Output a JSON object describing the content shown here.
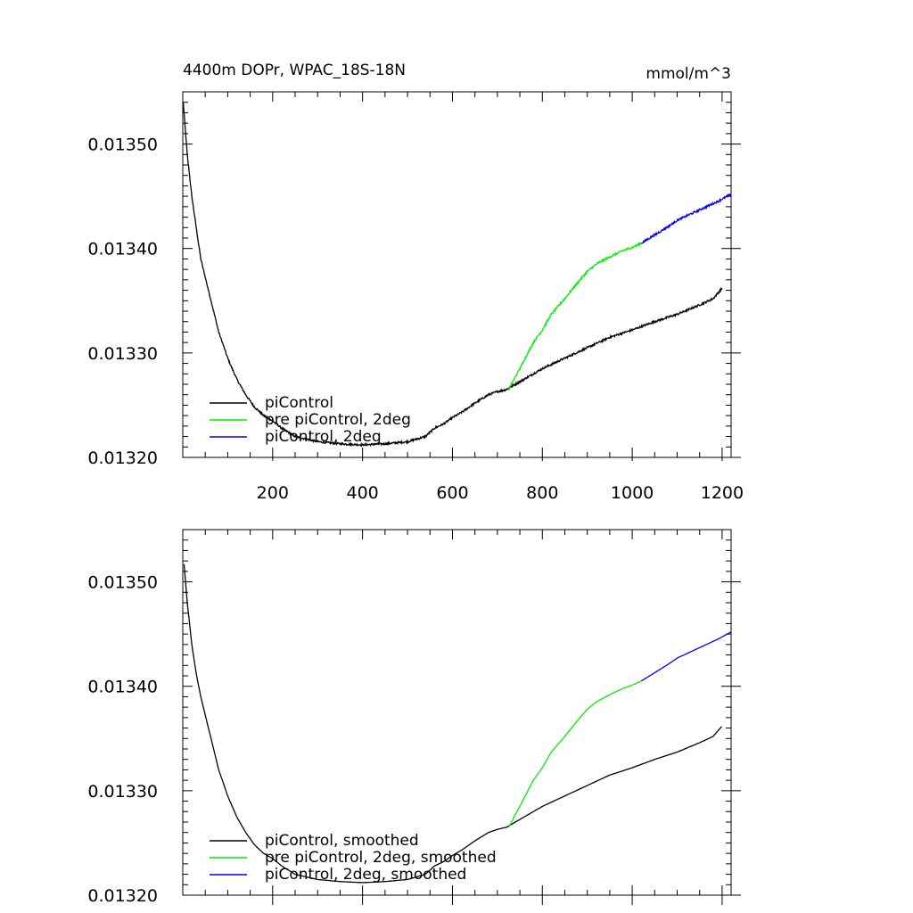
{
  "chart_data": [
    {
      "type": "line",
      "title": "4400m DOPr, WPAC_18S-18N",
      "units": "mmol/m^3",
      "xlabel": "",
      "ylabel": "",
      "xlim": [
        0,
        1220
      ],
      "ylim": [
        0.0132,
        0.01355
      ],
      "x_ticks": [
        200,
        400,
        600,
        800,
        1000,
        1200
      ],
      "x_tick_labels": [
        "200",
        "400",
        "600",
        "800",
        "1000",
        "1200"
      ],
      "y_ticks": [
        0.0132,
        0.0133,
        0.0134,
        0.0135
      ],
      "y_tick_labels": [
        "0.01320",
        "0.01330",
        "0.01340",
        "0.01350"
      ],
      "grid": false,
      "legend_position": "bottom-left",
      "series": [
        {
          "name": "piControl",
          "color": "#000000",
          "noisy": true,
          "x": [
            1,
            10,
            20,
            30,
            40,
            60,
            80,
            100,
            120,
            140,
            160,
            180,
            200,
            220,
            250,
            300,
            350,
            400,
            450,
            500,
            540,
            560,
            580,
            600,
            620,
            650,
            680,
            700,
            720,
            740,
            760,
            780,
            800,
            850,
            900,
            950,
            1000,
            1050,
            1100,
            1150,
            1180,
            1200
          ],
          "values": [
            0.01354,
            0.01349,
            0.01345,
            0.01342,
            0.01339,
            0.013355,
            0.01332,
            0.013295,
            0.013275,
            0.01326,
            0.013248,
            0.01324,
            0.013235,
            0.013228,
            0.01322,
            0.013215,
            0.013213,
            0.013212,
            0.013213,
            0.013215,
            0.01322,
            0.013228,
            0.013232,
            0.013238,
            0.013243,
            0.013252,
            0.01326,
            0.013263,
            0.013265,
            0.01327,
            0.013275,
            0.01328,
            0.013285,
            0.013295,
            0.013305,
            0.013315,
            0.013322,
            0.01333,
            0.013337,
            0.013346,
            0.013352,
            0.013362
          ]
        },
        {
          "name": "pre piControl, 2deg",
          "color": "#00ee00",
          "noisy": true,
          "x": [
            725,
            750,
            780,
            800,
            820,
            850,
            880,
            900,
            920,
            950,
            980,
            1000,
            1020
          ],
          "values": [
            0.013265,
            0.013285,
            0.01331,
            0.013322,
            0.013337,
            0.013352,
            0.013368,
            0.013378,
            0.013385,
            0.013392,
            0.013398,
            0.013401,
            0.013405
          ]
        },
        {
          "name": "piControl, 2deg",
          "color": "#0000ee",
          "noisy": true,
          "x": [
            1020,
            1050,
            1080,
            1100,
            1130,
            1160,
            1190,
            1220
          ],
          "values": [
            0.013405,
            0.013413,
            0.013421,
            0.013427,
            0.013433,
            0.013439,
            0.013445,
            0.013452
          ]
        }
      ]
    },
    {
      "type": "line",
      "title": "",
      "xlabel": "",
      "ylabel": "",
      "xlim": [
        0,
        1220
      ],
      "ylim": [
        0.0132,
        0.01355
      ],
      "x_ticks": [
        200,
        400,
        600,
        800,
        1000,
        1200
      ],
      "x_tick_labels": [],
      "y_ticks": [
        0.0132,
        0.0133,
        0.0134,
        0.0135
      ],
      "y_tick_labels": [
        "0.01320",
        "0.01330",
        "0.01340",
        "0.01350"
      ],
      "grid": false,
      "legend_position": "bottom-left",
      "series": [
        {
          "name": "piControl, smoothed",
          "color": "#000000",
          "noisy": false,
          "x": [
            3,
            10,
            20,
            30,
            40,
            60,
            80,
            100,
            120,
            140,
            160,
            180,
            200,
            220,
            250,
            300,
            350,
            400,
            450,
            500,
            540,
            560,
            580,
            600,
            620,
            650,
            680,
            700,
            720,
            740,
            760,
            780,
            800,
            850,
            900,
            950,
            1000,
            1050,
            1100,
            1150,
            1180,
            1200
          ],
          "values": [
            0.013517,
            0.01348,
            0.01344,
            0.013412,
            0.01339,
            0.013355,
            0.01332,
            0.013295,
            0.013275,
            0.01326,
            0.013248,
            0.01324,
            0.013235,
            0.013228,
            0.01322,
            0.013215,
            0.013213,
            0.013212,
            0.013213,
            0.013215,
            0.01322,
            0.013228,
            0.013232,
            0.013238,
            0.013243,
            0.013252,
            0.01326,
            0.013263,
            0.013265,
            0.01327,
            0.013275,
            0.01328,
            0.013285,
            0.013295,
            0.013305,
            0.013315,
            0.013322,
            0.01333,
            0.013337,
            0.013346,
            0.013352,
            0.013362
          ]
        },
        {
          "name": "pre piControl, 2deg, smoothed",
          "color": "#00ee00",
          "noisy": false,
          "x": [
            725,
            750,
            780,
            800,
            820,
            850,
            880,
            900,
            920,
            950,
            980,
            1000,
            1020
          ],
          "values": [
            0.013265,
            0.013285,
            0.01331,
            0.013322,
            0.013337,
            0.013352,
            0.013368,
            0.013378,
            0.013385,
            0.013392,
            0.013398,
            0.013401,
            0.013405
          ]
        },
        {
          "name": "piControl, 2deg, smoothed",
          "color": "#0000ee",
          "noisy": false,
          "x": [
            1020,
            1050,
            1080,
            1100,
            1130,
            1160,
            1190,
            1220
          ],
          "values": [
            0.013405,
            0.013413,
            0.013421,
            0.013427,
            0.013433,
            0.013439,
            0.013445,
            0.013452
          ]
        }
      ]
    }
  ]
}
